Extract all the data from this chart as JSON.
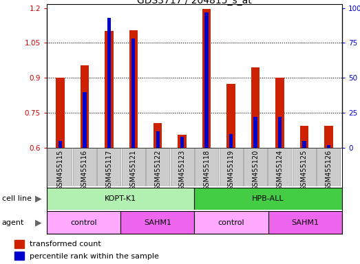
{
  "title": "GDS3717 / 204815_s_at",
  "samples": [
    "GSM455115",
    "GSM455116",
    "GSM455117",
    "GSM455121",
    "GSM455122",
    "GSM455123",
    "GSM455118",
    "GSM455119",
    "GSM455120",
    "GSM455124",
    "GSM455125",
    "GSM455126"
  ],
  "red_values": [
    0.9,
    0.955,
    1.1,
    1.105,
    0.705,
    0.655,
    1.195,
    0.875,
    0.945,
    0.9,
    0.695,
    0.695
  ],
  "blue_values_pct": [
    5,
    40,
    93,
    78,
    12,
    8,
    97,
    10,
    22,
    22,
    5,
    2
  ],
  "ylim": [
    0.6,
    1.2
  ],
  "y2lim": [
    0,
    100
  ],
  "yticks": [
    0.6,
    0.75,
    0.9,
    1.05,
    1.2
  ],
  "ytick_labels": [
    "0.6",
    "0.75",
    "0.9",
    "1.05",
    "1.2"
  ],
  "y2ticks": [
    0,
    25,
    50,
    75,
    100
  ],
  "y2tick_labels": [
    "0",
    "25",
    "50",
    "75",
    "100%"
  ],
  "cell_line_groups": [
    {
      "label": "KOPT-K1",
      "start": 0,
      "end": 6,
      "color": "#b2f0b2"
    },
    {
      "label": "HPB-ALL",
      "start": 6,
      "end": 12,
      "color": "#44cc44"
    }
  ],
  "agent_groups": [
    {
      "label": "control",
      "start": 0,
      "end": 3,
      "color": "#ffaaff"
    },
    {
      "label": "SAHM1",
      "start": 3,
      "end": 6,
      "color": "#ee66ee"
    },
    {
      "label": "control",
      "start": 6,
      "end": 9,
      "color": "#ffaaff"
    },
    {
      "label": "SAHM1",
      "start": 9,
      "end": 12,
      "color": "#ee66ee"
    }
  ],
  "red_bar_width": 0.35,
  "blue_bar_width": 0.15,
  "red_color": "#cc2200",
  "blue_color": "#0000cc",
  "bg_color": "#ffffff",
  "plot_area_bg": "#ffffff",
  "xtick_bg": "#cccccc",
  "grid_color": "#000000",
  "legend_red": "transformed count",
  "legend_blue": "percentile rank within the sample",
  "ylabel_color": "#cc0000",
  "y2label_color": "#0000cc",
  "title_fontsize": 10,
  "tick_fontsize": 7.5,
  "label_fontsize": 8
}
